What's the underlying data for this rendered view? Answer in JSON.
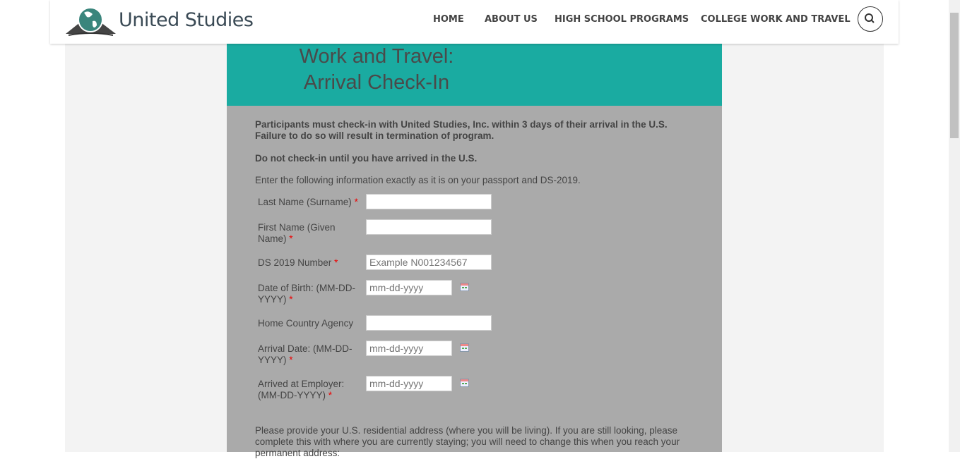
{
  "header": {
    "brand": "United Studies",
    "nav": [
      "HOME",
      "ABOUT US",
      "HIGH SCHOOL PROGRAMS",
      "COLLEGE WORK AND TRAVEL"
    ]
  },
  "form": {
    "title_line1": "Work and Travel:",
    "title_line2": "Arrival Check-In",
    "notice1": "Participants must check-in with United Studies, Inc. within 3 days of their arrival in the U.S.",
    "notice2": "Failure to do so will result in termination of program.",
    "notice3": "Do not check-in until you have arrived in the U.S.",
    "instructions": "Enter the following information exactly as it is on your passport and DS-2019.",
    "fields": [
      {
        "label": "Last Name (Surname)",
        "value": ""
      },
      {
        "label": "First Name (Given Name)",
        "value": ""
      },
      {
        "label": "DS 2019 Number",
        "placeholder": "Example N001234567"
      },
      {
        "label": "Date of Birth: (MM-DD-YYYY)",
        "placeholder": "mm-dd-yyyy"
      },
      {
        "label": "Home Country Agency",
        "value": ""
      },
      {
        "label": "Arrival Date: (MM-DD-YYYY)",
        "placeholder": "mm-dd-yyyy"
      },
      {
        "label": "Arrived at Employer: (MM-DD-YYYY)",
        "placeholder": "mm-dd-yyyy"
      }
    ],
    "required_mark": "*",
    "address_text": "Please provide your U.S. residential address (where you will be living). If you are still looking, please complete this with where you are currently staying; you will need to change this when you reach your permanent address:"
  },
  "colors": {
    "teal": "#1aaba1",
    "form_bg": "#aaaaaa"
  }
}
